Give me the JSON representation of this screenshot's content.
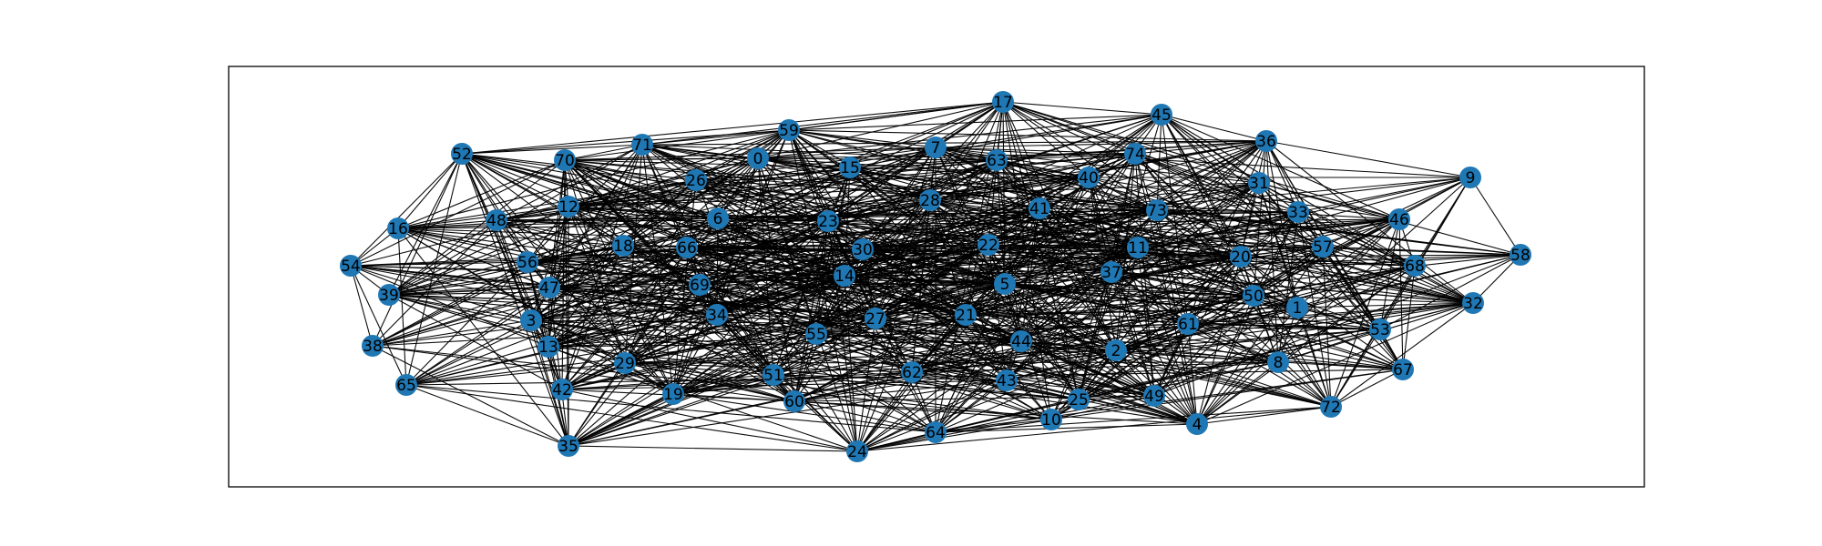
{
  "diagram": {
    "type": "network-graph",
    "node_color": "#1f77b4",
    "edge_color": "#000000",
    "background": "#ffffff",
    "nodes": [
      {
        "id": "0",
        "label": "0"
      },
      {
        "id": "1",
        "label": "1"
      },
      {
        "id": "2",
        "label": "2"
      },
      {
        "id": "3",
        "label": "3"
      },
      {
        "id": "4",
        "label": "4"
      },
      {
        "id": "5",
        "label": "5"
      },
      {
        "id": "6",
        "label": "6"
      },
      {
        "id": "7",
        "label": "7"
      },
      {
        "id": "8",
        "label": "8"
      },
      {
        "id": "9",
        "label": "9"
      },
      {
        "id": "10",
        "label": "10"
      },
      {
        "id": "11",
        "label": "11"
      },
      {
        "id": "12",
        "label": "12"
      },
      {
        "id": "13",
        "label": "13"
      },
      {
        "id": "14",
        "label": "14"
      },
      {
        "id": "15",
        "label": "15"
      },
      {
        "id": "16",
        "label": "16"
      },
      {
        "id": "17",
        "label": "17"
      },
      {
        "id": "18",
        "label": "18"
      },
      {
        "id": "19",
        "label": "19"
      },
      {
        "id": "20",
        "label": "20"
      },
      {
        "id": "21",
        "label": "21"
      },
      {
        "id": "22",
        "label": "22"
      },
      {
        "id": "23",
        "label": "23"
      },
      {
        "id": "24",
        "label": "24"
      },
      {
        "id": "25",
        "label": "25"
      },
      {
        "id": "26",
        "label": "26"
      },
      {
        "id": "27",
        "label": "27"
      },
      {
        "id": "28",
        "label": "28"
      },
      {
        "id": "29",
        "label": "29"
      },
      {
        "id": "30",
        "label": "30"
      },
      {
        "id": "31",
        "label": "31"
      },
      {
        "id": "32",
        "label": "32"
      },
      {
        "id": "33",
        "label": "33"
      },
      {
        "id": "34",
        "label": "34"
      },
      {
        "id": "35",
        "label": "35"
      },
      {
        "id": "36",
        "label": "36"
      },
      {
        "id": "37",
        "label": "37"
      },
      {
        "id": "38",
        "label": "38"
      },
      {
        "id": "39",
        "label": "39"
      },
      {
        "id": "40",
        "label": "40"
      },
      {
        "id": "41",
        "label": "41"
      },
      {
        "id": "42",
        "label": "42"
      },
      {
        "id": "43",
        "label": "43"
      },
      {
        "id": "44",
        "label": "44"
      },
      {
        "id": "45",
        "label": "45"
      },
      {
        "id": "46",
        "label": "46"
      },
      {
        "id": "47",
        "label": "47"
      },
      {
        "id": "48",
        "label": "48"
      },
      {
        "id": "49",
        "label": "49"
      },
      {
        "id": "50",
        "label": "50"
      },
      {
        "id": "51",
        "label": "51"
      },
      {
        "id": "52",
        "label": "52"
      },
      {
        "id": "53",
        "label": "53"
      },
      {
        "id": "54",
        "label": "54"
      },
      {
        "id": "55",
        "label": "55"
      },
      {
        "id": "56",
        "label": "56"
      },
      {
        "id": "57",
        "label": "57"
      },
      {
        "id": "58",
        "label": "58"
      },
      {
        "id": "59",
        "label": "59"
      },
      {
        "id": "60",
        "label": "60"
      },
      {
        "id": "61",
        "label": "61"
      },
      {
        "id": "62",
        "label": "62"
      },
      {
        "id": "63",
        "label": "63"
      },
      {
        "id": "64",
        "label": "64"
      },
      {
        "id": "65",
        "label": "65"
      },
      {
        "id": "66",
        "label": "66"
      },
      {
        "id": "67",
        "label": "67"
      },
      {
        "id": "68",
        "label": "68"
      },
      {
        "id": "69",
        "label": "69"
      },
      {
        "id": "70",
        "label": "70"
      },
      {
        "id": "71",
        "label": "71"
      },
      {
        "id": "72",
        "label": "72"
      },
      {
        "id": "73",
        "label": "73"
      },
      {
        "id": "74",
        "label": "74"
      }
    ]
  }
}
